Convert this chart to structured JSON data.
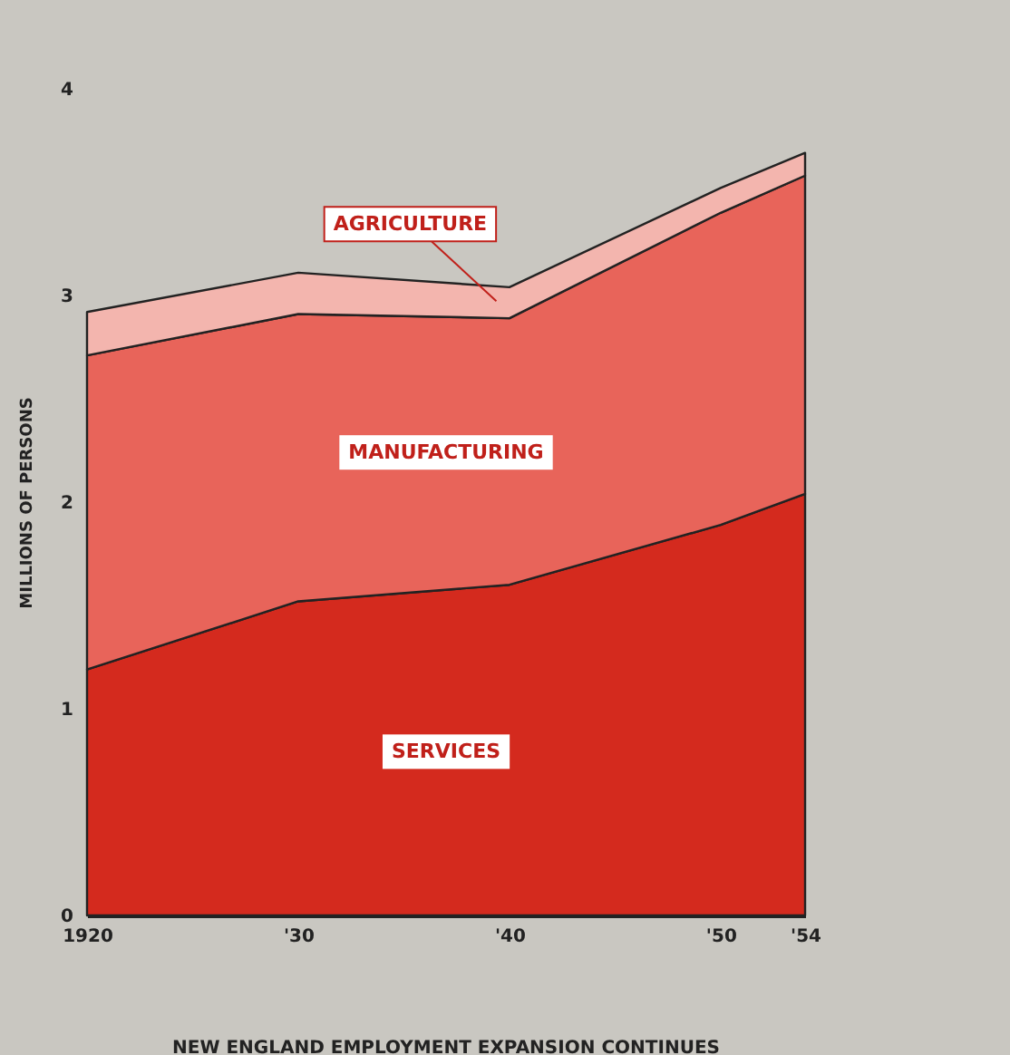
{
  "chart_data": {
    "type": "area",
    "title": "NEW ENGLAND EMPLOYMENT EXPANSION CONTINUES",
    "ylabel": "MILLIONS OF PERSONS",
    "stacked": true,
    "x": [
      1920,
      1930,
      1940,
      1950,
      1954
    ],
    "xlim": [
      1920,
      1954
    ],
    "xticks": [
      1920,
      {
        "value": 1930,
        "label": "'30"
      },
      {
        "value": 1940,
        "label": "'40"
      },
      {
        "value": 1950,
        "label": "'50"
      },
      {
        "value": 1954,
        "label": "'54"
      }
    ],
    "ylim": [
      0,
      4
    ],
    "yticks": [
      0,
      1,
      2,
      3,
      4
    ],
    "grid": false,
    "series": [
      {
        "name": "SERVICES",
        "color": "#d42a1e",
        "values": [
          1.19,
          1.52,
          1.6,
          1.89,
          2.04
        ]
      },
      {
        "name": "MANUFACTURING",
        "color": "#e8645a",
        "values": [
          1.52,
          1.39,
          1.29,
          1.51,
          1.54
        ]
      },
      {
        "name": "AGRICULTURE",
        "color": "#f3b5ae",
        "values": [
          0.21,
          0.2,
          0.15,
          0.12,
          0.11
        ]
      }
    ]
  }
}
